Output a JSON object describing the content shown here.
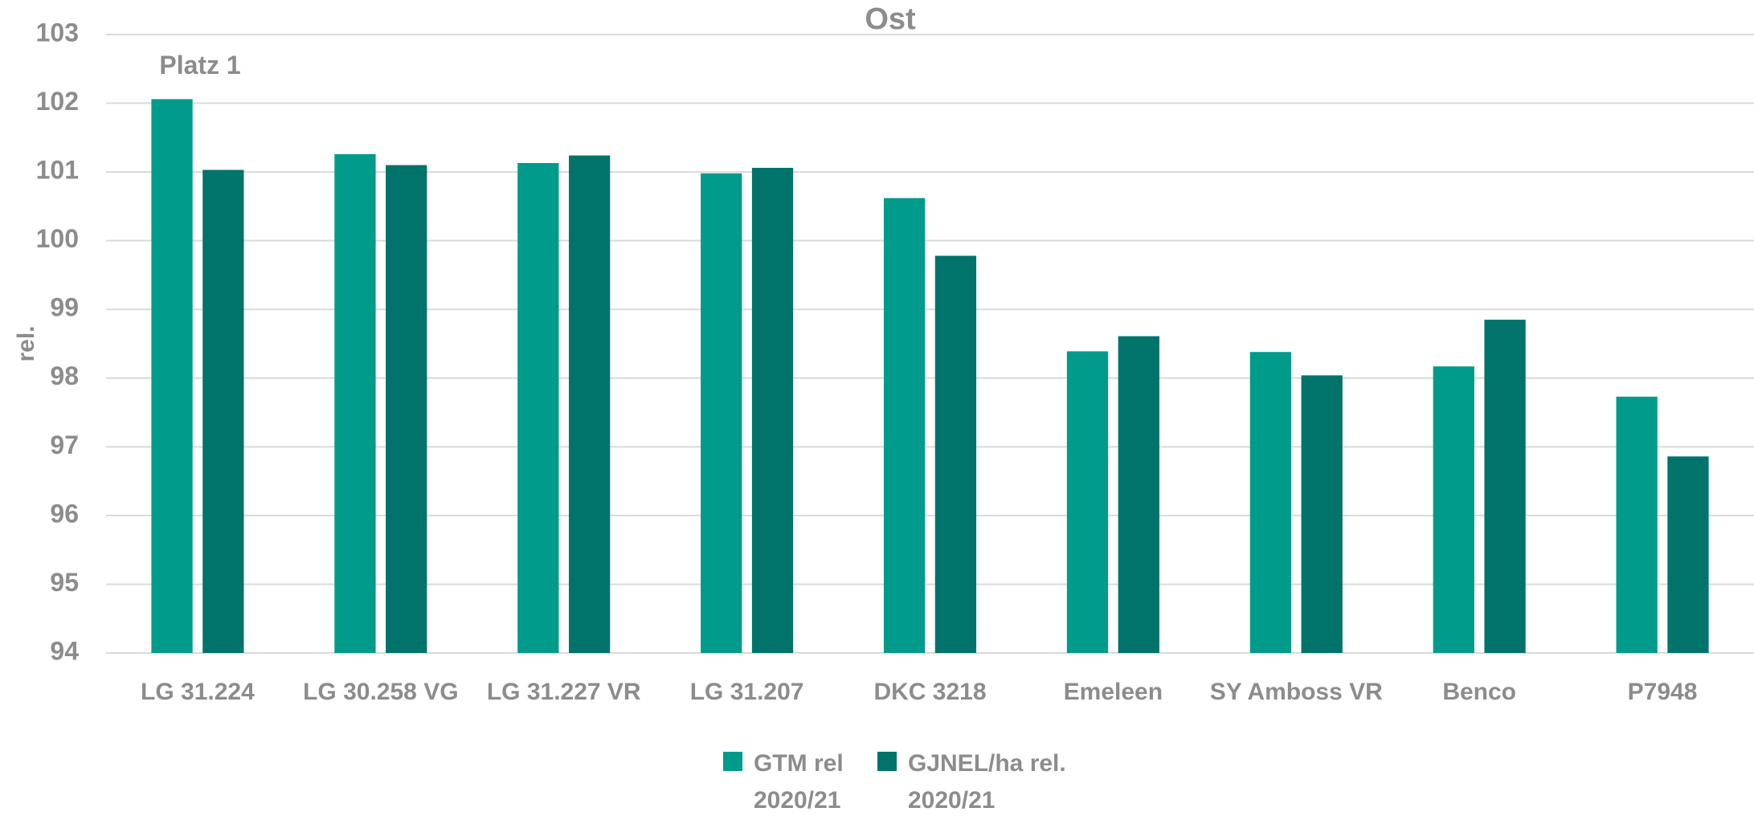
{
  "chart_data": {
    "type": "bar",
    "title": "Ost",
    "y_label": "rel.",
    "annotation": "Platz 1",
    "categories": [
      "LG 31.224",
      "LG 30.258 VG",
      "LG 31.227 VR",
      "LG 31.207",
      "DKC 3218",
      "Emeleen",
      "SY Amboss VR",
      "Benco",
      "P7948"
    ],
    "series": [
      {
        "name": "GTM rel 2020/21",
        "color": "#009b8a",
        "values": [
          102.06,
          101.26,
          101.13,
          100.98,
          100.62,
          98.39,
          98.38,
          98.17,
          97.73
        ]
      },
      {
        "name": "GJNEL/ha rel. 2020/21",
        "color": "#00736a",
        "values": [
          101.03,
          101.1,
          101.24,
          101.06,
          99.78,
          98.61,
          98.04,
          98.85,
          96.86
        ]
      }
    ],
    "ylim": [
      94,
      103
    ],
    "yticks": [
      94,
      95,
      96,
      97,
      98,
      99,
      100,
      101,
      102,
      103
    ],
    "grid": true,
    "legend": "bottom"
  }
}
